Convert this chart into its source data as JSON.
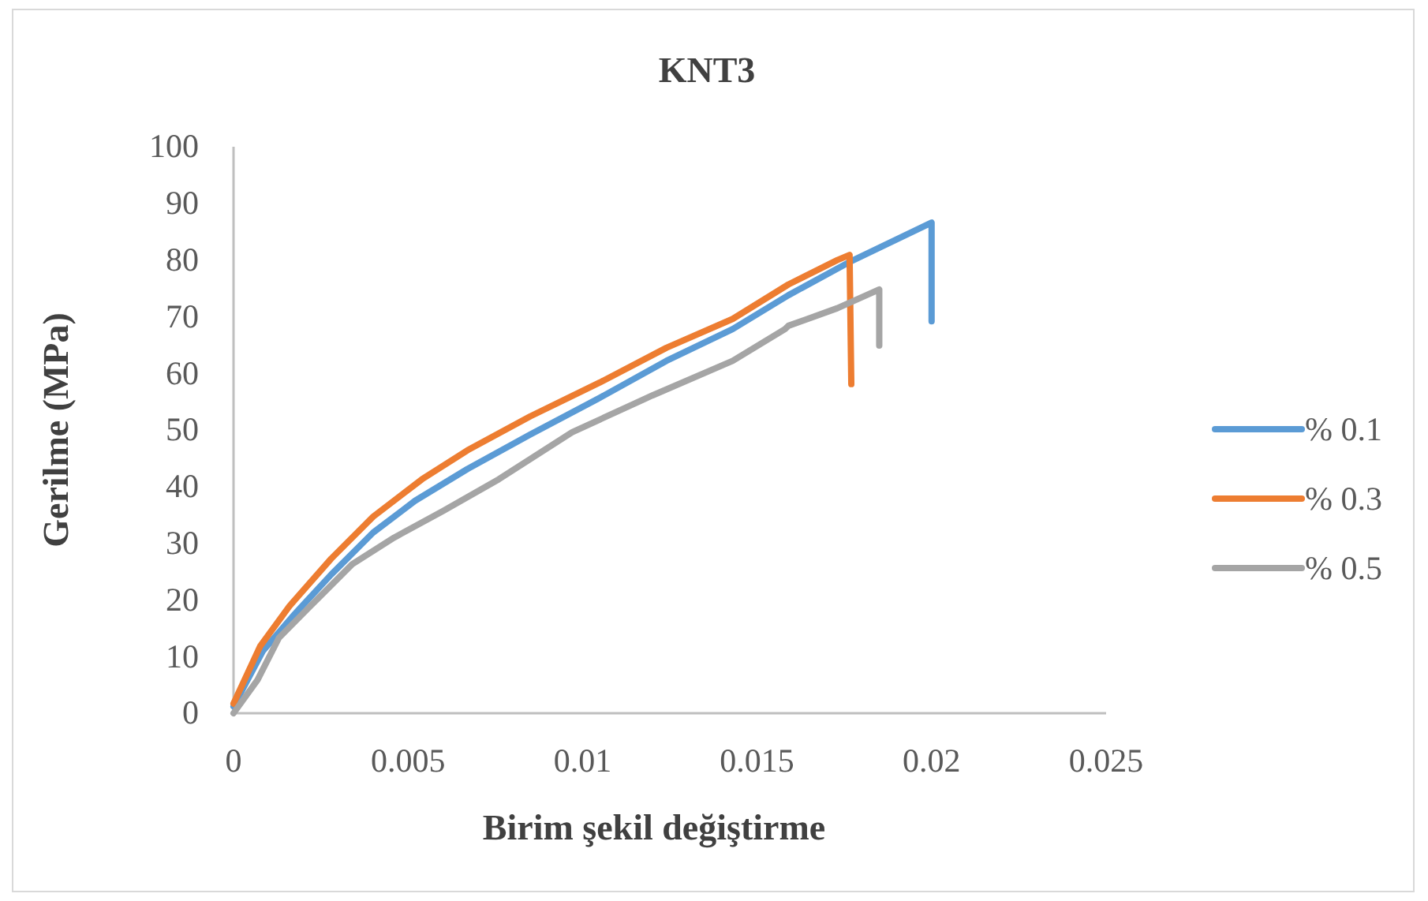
{
  "chart_data": {
    "type": "line",
    "title": "KNT3",
    "xlabel": "Birim şekil değiştirme",
    "ylabel": "Gerilme (MPa)",
    "xlim": [
      0,
      0.025
    ],
    "xticks": [
      0,
      0.005,
      0.01,
      0.015,
      0.02,
      0.025
    ],
    "ylim": [
      0,
      100
    ],
    "yticks": [
      0,
      10,
      20,
      30,
      40,
      50,
      60,
      70,
      80,
      90,
      100
    ],
    "grid": false,
    "legend": "right",
    "series": [
      {
        "name": "% 0.1",
        "color": "#5b9bd5",
        "x": [
          0,
          0.00084,
          0.00175,
          0.0028,
          0.004,
          0.0052,
          0.0067,
          0.0085,
          0.0105,
          0.0124,
          0.0143,
          0.0159,
          0.0176,
          0.02,
          0.02
        ],
        "values": [
          1.2,
          11.0,
          17.5,
          24.5,
          31.9,
          37.5,
          43.1,
          49.2,
          55.7,
          62.2,
          67.8,
          73.8,
          79.5,
          86.6,
          69.2
        ]
      },
      {
        "name": "% 0.3",
        "color": "#ed7d31",
        "x": [
          0,
          0.00077,
          0.0016,
          0.0028,
          0.004,
          0.0054,
          0.0067,
          0.0085,
          0.0105,
          0.0124,
          0.0143,
          0.0159,
          0.0173,
          0.01765,
          0.0177
        ],
        "values": [
          1.7,
          11.9,
          18.9,
          27.3,
          34.7,
          41.3,
          46.4,
          52.4,
          58.4,
          64.5,
          69.6,
          75.7,
          80.0,
          80.9,
          58.1
        ]
      },
      {
        "name": "% 0.5",
        "color": "#a5a5a5",
        "x": [
          0,
          0.00069,
          0.0013,
          0.0022,
          0.0034,
          0.0046,
          0.006,
          0.0076,
          0.0097,
          0.012,
          0.0143,
          0.0158,
          0.0159,
          0.0173,
          0.0185,
          0.0185
        ],
        "values": [
          0,
          5.9,
          13.3,
          18.9,
          26.3,
          31.0,
          35.7,
          41.3,
          49.6,
          56.1,
          62.2,
          67.8,
          68.4,
          71.5,
          74.8,
          64.9
        ]
      }
    ]
  }
}
